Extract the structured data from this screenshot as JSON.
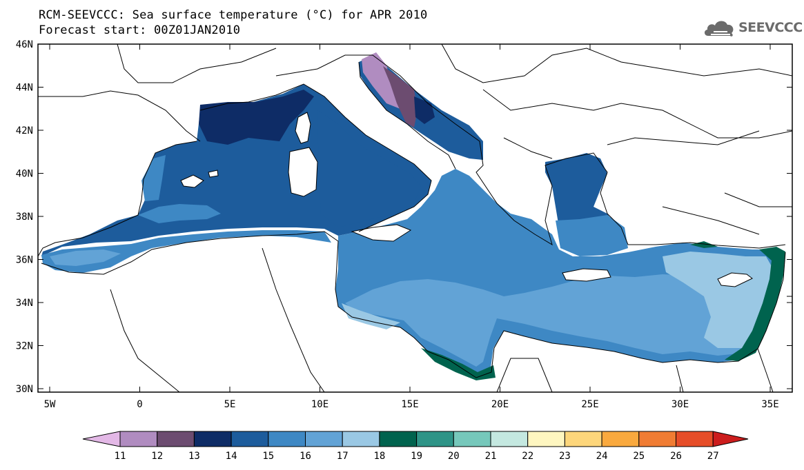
{
  "title": {
    "line1": "RCM-SEEVCCC: Sea surface temperature (°C) for APR 2010",
    "line2": "Forecast start: 00Z01JAN2010"
  },
  "logo": {
    "text": "SEEVCCC",
    "icon": "cloud-icon"
  },
  "map": {
    "lon_labels": [
      "5W",
      "0",
      "5E",
      "10E",
      "15E",
      "20E",
      "25E",
      "30E",
      "35E"
    ],
    "lat_labels": [
      "46N",
      "44N",
      "42N",
      "40N",
      "38N",
      "36N",
      "34N",
      "32N",
      "30N"
    ]
  },
  "colorbar": {
    "labels": [
      "11",
      "12",
      "13",
      "14",
      "15",
      "16",
      "17",
      "18",
      "19",
      "20",
      "21",
      "22",
      "23",
      "24",
      "25",
      "26",
      "27"
    ],
    "colors": [
      "#e3b8e6",
      "#b08cc0",
      "#6c4c70",
      "#0e2c66",
      "#1d5c9c",
      "#3e88c4",
      "#62a3d6",
      "#9ac8e4",
      "#00634e",
      "#2e9487",
      "#76c8bb",
      "#c4e8e0",
      "#fef6c0",
      "#fdd67b",
      "#f9a93e",
      "#f07c33",
      "#e64d28",
      "#cc1d1d"
    ]
  }
}
